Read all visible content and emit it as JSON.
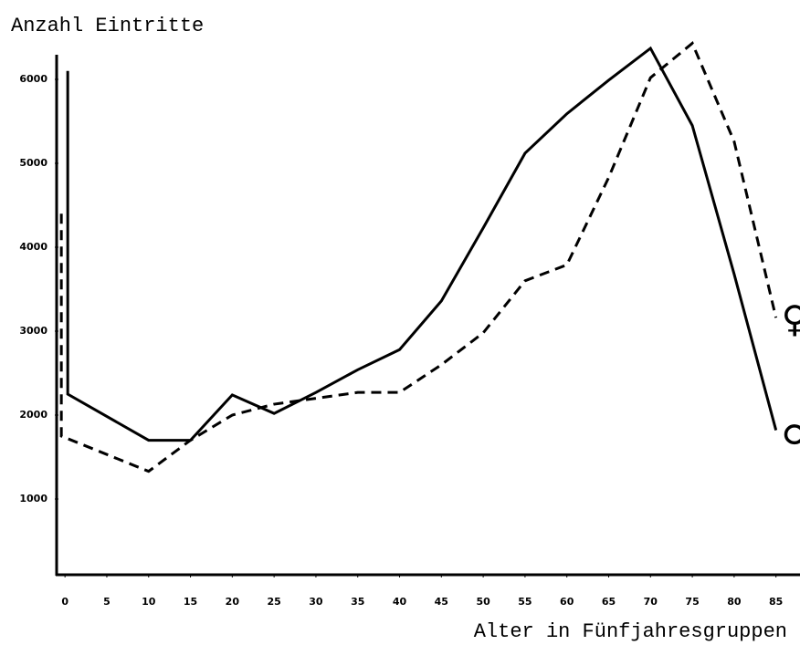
{
  "chart_data": {
    "type": "line",
    "title": "Anzahl Eintritte",
    "x_label": "Alter in Fünfjahresgruppen",
    "series": [
      {
        "name": "♂",
        "color": "#000000",
        "dash": false,
        "x": [
          0,
          0,
          10,
          15,
          20,
          25,
          30,
          35,
          40,
          45,
          50,
          55,
          60,
          65,
          70,
          75,
          80,
          85
        ],
        "values": [
          6100,
          2250,
          1700,
          1700,
          2240,
          2020,
          2270,
          2540,
          2780,
          3360,
          4230,
          5120,
          5590,
          5990,
          6370,
          5450,
          3680,
          1820
        ]
      },
      {
        "name": "♀",
        "color": "#000000",
        "dash": true,
        "x": [
          0,
          0,
          10,
          15,
          20,
          25,
          30,
          35,
          40,
          45,
          50,
          55,
          60,
          65,
          70,
          75,
          80,
          85
        ],
        "values": [
          4400,
          1750,
          1330,
          1700,
          2000,
          2130,
          2200,
          2270,
          2270,
          2600,
          2980,
          3600,
          3790,
          4830,
          6020,
          6430,
          5260,
          3160
        ]
      }
    ],
    "xlim": [
      -1,
      87
    ],
    "xticks": [
      0,
      5,
      10,
      15,
      20,
      25,
      30,
      35,
      40,
      45,
      50,
      55,
      60,
      65,
      70,
      75,
      80,
      85
    ],
    "ylim": [
      0,
      6500
    ],
    "yticks": [
      1000,
      2000,
      3000,
      4000,
      5000,
      6000
    ],
    "grid": false
  }
}
